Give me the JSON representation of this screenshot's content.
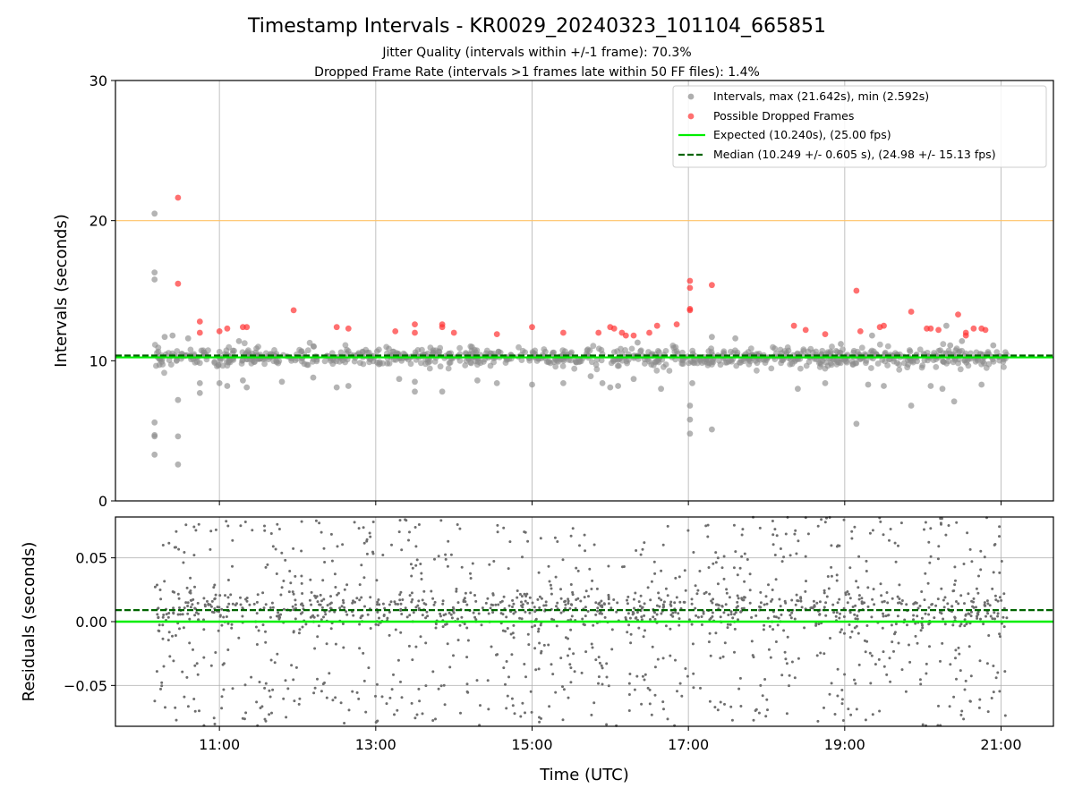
{
  "chart_data": {
    "type": "scatter",
    "title": "Timestamp Intervals - KR0029_20240323_101104_665851",
    "subtitles": [
      "Jitter Quality (intervals within +/-1 frame): 70.3%",
      "Dropped Frame Rate (intervals >1 frames late within 50 FF files): 1.4%"
    ],
    "xlabel": "Time (UTC)",
    "x_range_hours": [
      9.67,
      21.67
    ],
    "x_ticks": [
      {
        "value": 11,
        "label": "11:00"
      },
      {
        "value": 13,
        "label": "13:00"
      },
      {
        "value": 15,
        "label": "15:00"
      },
      {
        "value": 17,
        "label": "17:00"
      },
      {
        "value": 19,
        "label": "19:00"
      },
      {
        "value": 21,
        "label": "21:00"
      }
    ],
    "grid": true,
    "top_panel": {
      "ylabel": "Intervals (seconds)",
      "ylim": [
        0,
        30
      ],
      "y_ticks": [
        {
          "value": 0,
          "label": "0"
        },
        {
          "value": 10,
          "label": "10"
        },
        {
          "value": 20,
          "label": "20"
        },
        {
          "value": 30,
          "label": "30"
        }
      ],
      "threshold_line": {
        "y": 20,
        "color": "#ffc266"
      },
      "expected_line": {
        "y": 10.24,
        "color": "#00ee00"
      },
      "median_line": {
        "y": 10.249,
        "color": "#006400"
      },
      "legend_position": "top-right",
      "legend": [
        {
          "label": "Intervals, max (21.642s), min (2.592s)",
          "kind": "dot",
          "color": "#8c8c8c"
        },
        {
          "label": "Possible Dropped Frames",
          "kind": "dot",
          "color": "#ff3333"
        },
        {
          "label": "Expected (10.240s), (25.00 fps)",
          "kind": "line",
          "color": "#00ee00"
        },
        {
          "label": "Median (10.249 +/- 0.605 s), (24.98 +/- 15.13 fps)",
          "kind": "dashed",
          "color": "#006400"
        }
      ],
      "intervals_color": "#8c8c8c",
      "dropped_color": "#ff3333",
      "intervals_outliers": [
        [
          10.17,
          20.5
        ],
        [
          10.17,
          16.3
        ],
        [
          10.17,
          15.8
        ],
        [
          10.17,
          5.6
        ],
        [
          10.17,
          4.7
        ],
        [
          10.17,
          4.6
        ],
        [
          10.17,
          3.3
        ],
        [
          10.47,
          2.6
        ],
        [
          10.47,
          4.6
        ],
        [
          10.47,
          7.2
        ],
        [
          10.3,
          11.7
        ],
        [
          10.4,
          11.8
        ],
        [
          10.6,
          11.6
        ],
        [
          10.75,
          7.7
        ],
        [
          10.75,
          8.4
        ],
        [
          11.0,
          8.4
        ],
        [
          11.1,
          8.2
        ],
        [
          11.25,
          11.4
        ],
        [
          11.3,
          8.6
        ],
        [
          11.35,
          8.1
        ],
        [
          11.8,
          8.5
        ],
        [
          12.2,
          8.8
        ],
        [
          12.5,
          8.1
        ],
        [
          12.65,
          8.2
        ],
        [
          13.3,
          8.7
        ],
        [
          13.5,
          7.8
        ],
        [
          13.5,
          8.5
        ],
        [
          13.85,
          7.8
        ],
        [
          14.3,
          8.6
        ],
        [
          14.55,
          8.4
        ],
        [
          15.0,
          8.3
        ],
        [
          15.4,
          8.4
        ],
        [
          15.75,
          8.9
        ],
        [
          15.9,
          8.4
        ],
        [
          16.0,
          8.1
        ],
        [
          16.1,
          8.2
        ],
        [
          16.3,
          8.7
        ],
        [
          16.35,
          11.3
        ],
        [
          16.65,
          8.0
        ],
        [
          17.02,
          6.8
        ],
        [
          17.02,
          5.8
        ],
        [
          17.02,
          4.8
        ],
        [
          17.05,
          8.4
        ],
        [
          17.3,
          5.1
        ],
        [
          17.3,
          11.7
        ],
        [
          17.6,
          11.6
        ],
        [
          18.4,
          8.0
        ],
        [
          18.75,
          8.4
        ],
        [
          18.95,
          11.2
        ],
        [
          19.15,
          5.5
        ],
        [
          19.3,
          8.3
        ],
        [
          19.35,
          11.8
        ],
        [
          19.5,
          8.2
        ],
        [
          19.85,
          6.8
        ],
        [
          20.1,
          8.2
        ],
        [
          20.25,
          8.0
        ],
        [
          20.3,
          12.5
        ],
        [
          20.35,
          11.1
        ],
        [
          20.4,
          7.1
        ],
        [
          20.5,
          11.4
        ],
        [
          20.75,
          8.3
        ],
        [
          20.9,
          11.1
        ]
      ],
      "dropped_frames": [
        [
          10.47,
          21.64
        ],
        [
          10.47,
          15.5
        ],
        [
          10.75,
          12.8
        ],
        [
          10.75,
          12.0
        ],
        [
          11.0,
          12.1
        ],
        [
          11.1,
          12.3
        ],
        [
          11.3,
          12.4
        ],
        [
          11.35,
          12.4
        ],
        [
          11.95,
          13.6
        ],
        [
          12.5,
          12.4
        ],
        [
          12.65,
          12.3
        ],
        [
          13.25,
          12.1
        ],
        [
          13.5,
          12.6
        ],
        [
          13.5,
          12.0
        ],
        [
          13.85,
          12.6
        ],
        [
          13.85,
          12.4
        ],
        [
          14.0,
          12.0
        ],
        [
          14.55,
          11.9
        ],
        [
          15.0,
          12.4
        ],
        [
          15.4,
          12.0
        ],
        [
          15.85,
          12.0
        ],
        [
          16.0,
          12.4
        ],
        [
          16.05,
          12.3
        ],
        [
          16.15,
          12.0
        ],
        [
          16.2,
          11.8
        ],
        [
          16.3,
          11.8
        ],
        [
          16.5,
          12.0
        ],
        [
          16.6,
          12.5
        ],
        [
          16.85,
          12.6
        ],
        [
          17.02,
          15.7
        ],
        [
          17.02,
          15.2
        ],
        [
          17.02,
          13.7
        ],
        [
          17.02,
          13.6
        ],
        [
          17.3,
          15.4
        ],
        [
          18.35,
          12.5
        ],
        [
          18.5,
          12.2
        ],
        [
          18.75,
          11.9
        ],
        [
          19.15,
          15.0
        ],
        [
          19.2,
          12.1
        ],
        [
          19.45,
          12.4
        ],
        [
          19.5,
          12.5
        ],
        [
          19.85,
          13.5
        ],
        [
          20.05,
          12.3
        ],
        [
          20.1,
          12.3
        ],
        [
          20.2,
          12.2
        ],
        [
          20.45,
          13.3
        ],
        [
          20.55,
          12.0
        ],
        [
          20.55,
          11.8
        ],
        [
          20.65,
          12.3
        ],
        [
          20.75,
          12.3
        ],
        [
          20.8,
          12.2
        ]
      ],
      "intervals_core": {
        "x_range": [
          10.17,
          21.08
        ],
        "y_center": 10.24,
        "y_spread": 0.6,
        "count": 900
      }
    },
    "bottom_panel": {
      "ylabel": "Residuals (seconds)",
      "ylim": [
        -0.082,
        0.082
      ],
      "y_ticks": [
        {
          "value": 0.05,
          "label": "0.05"
        },
        {
          "value": 0.0,
          "label": "0.00"
        },
        {
          "value": -0.05,
          "label": "−0.05"
        }
      ],
      "zero_line": {
        "y": 0.0,
        "color": "#00ee00"
      },
      "median_line": {
        "y": 0.009,
        "color": "#006400"
      },
      "residuals_color": "#6e6e6e",
      "residuals_summary": {
        "x_range": [
          10.17,
          21.08
        ],
        "y_range": [
          -0.082,
          0.082
        ],
        "count": 1600
      }
    }
  }
}
